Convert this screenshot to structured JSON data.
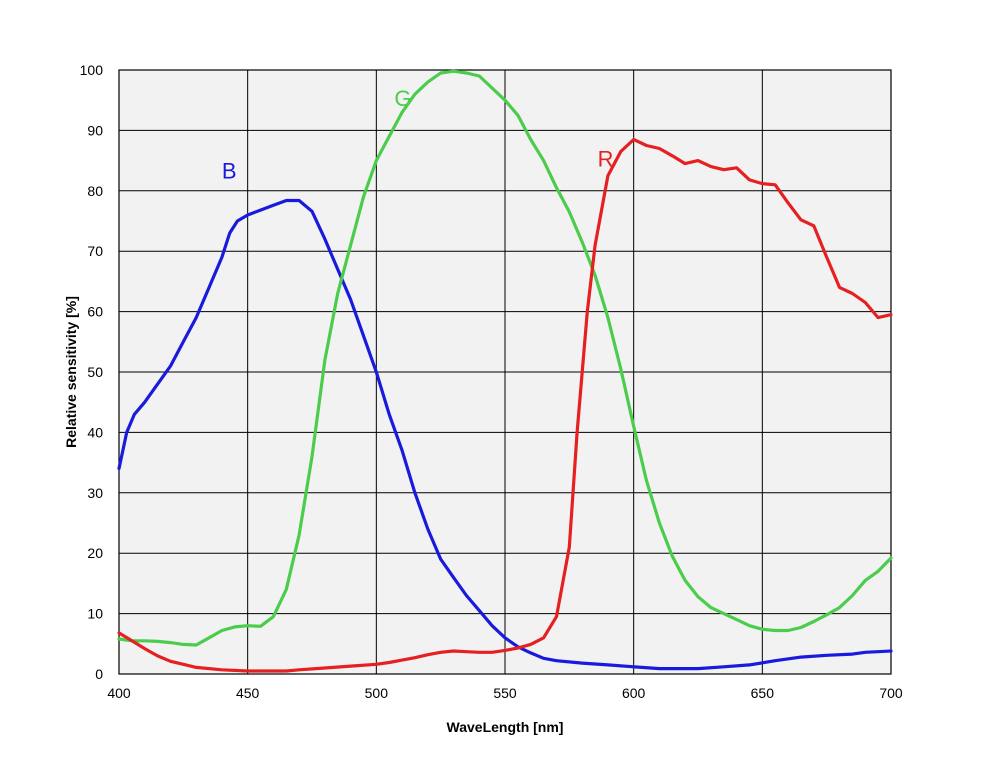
{
  "chart_data": {
    "type": "line",
    "xlabel": "WaveLength [nm]",
    "ylabel": "Relative sensitivity [%]",
    "xlim": [
      400,
      700
    ],
    "ylim": [
      0,
      100
    ],
    "xticks": [
      400,
      450,
      500,
      550,
      600,
      650,
      700
    ],
    "yticks": [
      0,
      10,
      20,
      30,
      40,
      50,
      60,
      70,
      80,
      90,
      100
    ],
    "grid": true,
    "legend": "inline labels",
    "series": [
      {
        "name": "B",
        "color": "#1a1adc",
        "label_at": [
          440,
          82
        ],
        "points": [
          [
            400,
            34
          ],
          [
            403,
            40
          ],
          [
            406,
            43
          ],
          [
            410,
            45
          ],
          [
            415,
            48
          ],
          [
            420,
            51
          ],
          [
            425,
            55
          ],
          [
            430,
            59
          ],
          [
            435,
            64
          ],
          [
            440,
            69
          ],
          [
            443,
            73
          ],
          [
            446,
            75
          ],
          [
            450,
            76
          ],
          [
            455,
            76.8
          ],
          [
            460,
            77.6
          ],
          [
            465,
            78.4
          ],
          [
            470,
            78.4
          ],
          [
            475,
            76.6
          ],
          [
            480,
            72
          ],
          [
            485,
            67
          ],
          [
            490,
            62
          ],
          [
            495,
            56
          ],
          [
            500,
            50
          ],
          [
            505,
            43
          ],
          [
            510,
            37
          ],
          [
            515,
            30
          ],
          [
            520,
            24
          ],
          [
            525,
            19
          ],
          [
            530,
            16
          ],
          [
            535,
            13
          ],
          [
            540,
            10.5
          ],
          [
            545,
            8
          ],
          [
            550,
            6
          ],
          [
            555,
            4.5
          ],
          [
            560,
            3.5
          ],
          [
            565,
            2.6
          ],
          [
            570,
            2.2
          ],
          [
            580,
            1.8
          ],
          [
            590,
            1.5
          ],
          [
            600,
            1.2
          ],
          [
            610,
            0.9
          ],
          [
            625,
            0.9
          ],
          [
            635,
            1.2
          ],
          [
            645,
            1.5
          ],
          [
            655,
            2.2
          ],
          [
            665,
            2.8
          ],
          [
            675,
            3.1
          ],
          [
            685,
            3.3
          ],
          [
            690,
            3.6
          ],
          [
            700,
            3.8
          ]
        ]
      },
      {
        "name": "G",
        "color": "#4ccc4c",
        "label_at": [
          507,
          94
        ],
        "points": [
          [
            400,
            5.8
          ],
          [
            405,
            5.5
          ],
          [
            410,
            5.5
          ],
          [
            415,
            5.4
          ],
          [
            420,
            5.2
          ],
          [
            425,
            4.9
          ],
          [
            430,
            4.8
          ],
          [
            435,
            6
          ],
          [
            440,
            7.2
          ],
          [
            445,
            7.8
          ],
          [
            450,
            8
          ],
          [
            455,
            7.9
          ],
          [
            460,
            9.5
          ],
          [
            465,
            14
          ],
          [
            470,
            23
          ],
          [
            475,
            36
          ],
          [
            480,
            52
          ],
          [
            485,
            63
          ],
          [
            490,
            71
          ],
          [
            495,
            79
          ],
          [
            500,
            85
          ],
          [
            505,
            89
          ],
          [
            510,
            93
          ],
          [
            515,
            96
          ],
          [
            520,
            98
          ],
          [
            525,
            99.5
          ],
          [
            530,
            99.8
          ],
          [
            535,
            99.5
          ],
          [
            540,
            99
          ],
          [
            545,
            97
          ],
          [
            550,
            95
          ],
          [
            555,
            92.5
          ],
          [
            560,
            88.5
          ],
          [
            565,
            85
          ],
          [
            570,
            80.5
          ],
          [
            575,
            76.5
          ],
          [
            580,
            71.5
          ],
          [
            585,
            66
          ],
          [
            590,
            59
          ],
          [
            595,
            50.5
          ],
          [
            600,
            41
          ],
          [
            605,
            32
          ],
          [
            610,
            25
          ],
          [
            615,
            19.5
          ],
          [
            620,
            15.5
          ],
          [
            625,
            12.8
          ],
          [
            630,
            11
          ],
          [
            635,
            10
          ],
          [
            640,
            9
          ],
          [
            645,
            8
          ],
          [
            650,
            7.4
          ],
          [
            655,
            7.2
          ],
          [
            660,
            7.2
          ],
          [
            665,
            7.7
          ],
          [
            670,
            8.7
          ],
          [
            675,
            9.8
          ],
          [
            680,
            11
          ],
          [
            685,
            13
          ],
          [
            690,
            15.5
          ],
          [
            695,
            17
          ],
          [
            700,
            19.2
          ]
        ]
      },
      {
        "name": "R",
        "color": "#e62020",
        "label_at": [
          586,
          84
        ],
        "points": [
          [
            400,
            6.8
          ],
          [
            405,
            5.5
          ],
          [
            410,
            4.2
          ],
          [
            415,
            3
          ],
          [
            420,
            2.1
          ],
          [
            425,
            1.6
          ],
          [
            430,
            1.1
          ],
          [
            440,
            0.7
          ],
          [
            450,
            0.5
          ],
          [
            465,
            0.5
          ],
          [
            470,
            0.7
          ],
          [
            480,
            1
          ],
          [
            490,
            1.3
          ],
          [
            500,
            1.6
          ],
          [
            505,
            1.9
          ],
          [
            510,
            2.3
          ],
          [
            515,
            2.7
          ],
          [
            520,
            3.2
          ],
          [
            525,
            3.6
          ],
          [
            530,
            3.8
          ],
          [
            535,
            3.7
          ],
          [
            540,
            3.6
          ],
          [
            545,
            3.6
          ],
          [
            550,
            3.9
          ],
          [
            555,
            4.3
          ],
          [
            560,
            4.9
          ],
          [
            565,
            6
          ],
          [
            570,
            9.5
          ],
          [
            575,
            21
          ],
          [
            578,
            40
          ],
          [
            582,
            60
          ],
          [
            585,
            71
          ],
          [
            590,
            82.5
          ],
          [
            595,
            86.5
          ],
          [
            600,
            88.5
          ],
          [
            605,
            87.5
          ],
          [
            610,
            87
          ],
          [
            615,
            85.8
          ],
          [
            620,
            84.5
          ],
          [
            625,
            85
          ],
          [
            630,
            84
          ],
          [
            635,
            83.5
          ],
          [
            640,
            83.8
          ],
          [
            645,
            81.8
          ],
          [
            650,
            81.2
          ],
          [
            655,
            81
          ],
          [
            660,
            78
          ],
          [
            665,
            75.2
          ],
          [
            670,
            74.2
          ],
          [
            675,
            69
          ],
          [
            680,
            64
          ],
          [
            685,
            63
          ],
          [
            690,
            61.5
          ],
          [
            695,
            59
          ],
          [
            700,
            59.5
          ]
        ]
      }
    ]
  }
}
